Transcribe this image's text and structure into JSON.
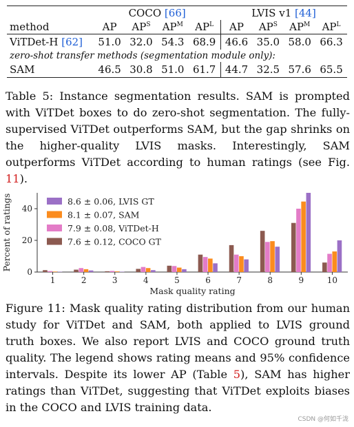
{
  "table": {
    "group_headers": [
      {
        "name": "COCO",
        "ref": "[66]"
      },
      {
        "name": "LVIS v1",
        "ref": "[44]"
      }
    ],
    "columns": {
      "method": "method",
      "ap": "AP",
      "ap_s_base": "AP",
      "ap_s_sup": "S",
      "ap_m_base": "AP",
      "ap_m_sup": "M",
      "ap_l_base": "AP",
      "ap_l_sup": "L"
    },
    "row1": {
      "method": "ViTDet-H",
      "ref": "[62]",
      "coco": [
        "51.0",
        "32.0",
        "54.3",
        "68.9"
      ],
      "lvis": [
        "46.6",
        "35.0",
        "58.0",
        "66.3"
      ]
    },
    "zero_shot_label": "zero-shot transfer methods (segmentation module only):",
    "row2": {
      "method": "SAM",
      "coco": [
        "46.5",
        "30.8",
        "51.0",
        "61.7"
      ],
      "lvis": [
        "44.7",
        "32.5",
        "57.6",
        "65.5"
      ]
    }
  },
  "table_caption": {
    "prefix": "Table 5: Instance segmentation results. SAM is prompted with ViTDet boxes to do zero-shot segmentation. The fully-supervised ViTDet outperforms SAM, but the gap shrinks on the higher-quality LVIS masks. Interestingly, SAM outperforms ViTDet according to human ratings (see Fig. ",
    "ref": "11",
    "suffix": ")."
  },
  "figure_caption": {
    "prefix": "Figure 11: Mask quality rating distribution from our human study for ViTDet and SAM, both applied to LVIS ground truth boxes. We also report LVIS and COCO ground truth quality. The legend shows rating means and 95% confidence intervals. Despite its lower AP (Table ",
    "ref": "5",
    "suffix": "), SAM has higher ratings than ViTDet, suggesting that ViTDet exploits biases in the COCO and LVIS training data."
  },
  "watermark": "CSDN @何如千泷",
  "chart_data": {
    "type": "bar",
    "xlabel": "Mask quality rating",
    "ylabel": "Percent of ratings",
    "categories": [
      "1",
      "2",
      "3",
      "4",
      "5",
      "6",
      "7",
      "8",
      "9",
      "10"
    ],
    "ylim": [
      0,
      50
    ],
    "yticks": [
      0,
      20,
      40
    ],
    "grid": false,
    "legend_position": "top-left",
    "series": [
      {
        "name": "7.6 ± 0.12, COCO GT",
        "color": "#8c5a50",
        "values": [
          1.2,
          1.5,
          0.5,
          2.0,
          4.0,
          11.0,
          17.0,
          26.0,
          31.0,
          6.0
        ]
      },
      {
        "name": "7.9 ± 0.08, ViTDet-H",
        "color": "#e37cc7",
        "values": [
          0.6,
          2.5,
          0.7,
          3.2,
          3.8,
          9.5,
          11.0,
          19.0,
          40.0,
          11.5
        ]
      },
      {
        "name": "8.1 ± 0.07, SAM",
        "color": "#fb8c1e",
        "values": [
          0.3,
          1.8,
          0.4,
          2.5,
          2.8,
          8.5,
          10.0,
          19.5,
          44.5,
          13.0
        ]
      },
      {
        "name": "8.6 ± 0.06, LVIS GT",
        "color": "#9b70c6",
        "values": [
          0.2,
          1.0,
          0.2,
          1.2,
          1.8,
          5.5,
          8.0,
          16.0,
          50.0,
          20.0
        ]
      }
    ],
    "legend_order": [
      3,
      2,
      1,
      0
    ]
  }
}
